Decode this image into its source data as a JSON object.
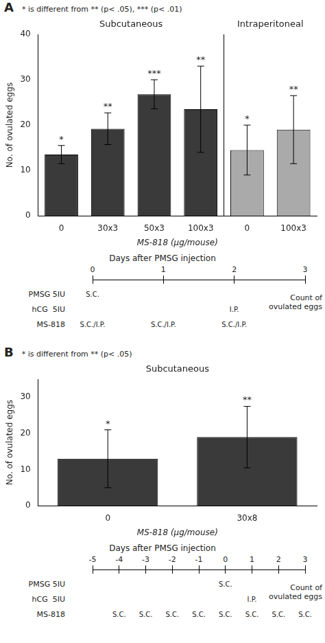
{
  "chart_data": [
    {
      "type": "bar",
      "panel": "A",
      "note": "* is different from ** (p< .05), *** (p< .01)",
      "xlabel": "MS-818 (μg/mouse)",
      "ylabel": "No. of ovulated eggs",
      "ylim": [
        0,
        40
      ],
      "yticks": [
        0,
        10,
        20,
        30,
        40
      ],
      "grid": false,
      "groups": [
        {
          "title": "Subcutaneous",
          "color": "#3a3a3a",
          "categories": [
            "0",
            "30x3",
            "50x3",
            "100x3"
          ],
          "values": [
            13.5,
            19.2,
            26.8,
            23.5
          ],
          "errors": [
            2.0,
            3.5,
            3.2,
            9.5
          ],
          "significance": [
            "*",
            "**",
            "***",
            "**"
          ]
        },
        {
          "title": "Intraperitoneal",
          "color": "#aaaaaa",
          "categories": [
            "0",
            "100x3"
          ],
          "values": [
            14.5,
            19.0
          ],
          "errors": [
            5.5,
            7.5
          ],
          "significance": [
            "*",
            "**"
          ]
        }
      ],
      "timeline": {
        "title": "Days after PMSG injection",
        "days": [
          "0",
          "1",
          "2",
          "3"
        ],
        "rows": [
          {
            "label": "PMSG 5IU",
            "entries": [
              {
                "day": "0",
                "text": "S.C."
              }
            ]
          },
          {
            "label": "hCG  5IU",
            "entries": [
              {
                "day": "2",
                "text": "I.P."
              }
            ]
          },
          {
            "label": "MS-818",
            "entries": [
              {
                "day": "0",
                "text": "S.C./I.P."
              },
              {
                "day": "1",
                "text": "S.C./I.P."
              },
              {
                "day": "2",
                "text": "S.C./I.P."
              }
            ]
          }
        ],
        "note": "Count of\novulated eggs"
      }
    },
    {
      "type": "bar",
      "panel": "B",
      "note": "* is different from ** (p< .05)",
      "xlabel": "MS-818 (μg/mouse)",
      "ylabel": "No. of ovulated eggs",
      "ylim": [
        0,
        35
      ],
      "yticks": [
        0,
        10,
        20,
        30
      ],
      "grid": false,
      "groups": [
        {
          "title": "Subcutaneous",
          "color": "#3a3a3a",
          "categories": [
            "0",
            "30x8"
          ],
          "values": [
            13.0,
            19.0
          ],
          "errors": [
            8.0,
            8.5
          ],
          "significance": [
            "*",
            "**"
          ]
        }
      ],
      "timeline": {
        "title": "Days after PMSG injection",
        "days": [
          "-5",
          "-4",
          "-3",
          "-2",
          "-1",
          "0",
          "1",
          "2",
          "3"
        ],
        "rows": [
          {
            "label": "PMSG 5IU",
            "entries": [
              {
                "day": "0",
                "text": "S.C."
              }
            ]
          },
          {
            "label": "hCG  5IU",
            "entries": [
              {
                "day": "1",
                "text": "I.P."
              }
            ]
          },
          {
            "label": "MS-818",
            "entries": [
              {
                "day": "-4",
                "text": "S.C."
              },
              {
                "day": "-3",
                "text": "S.C."
              },
              {
                "day": "-2",
                "text": "S.C."
              },
              {
                "day": "-1",
                "text": "S.C."
              },
              {
                "day": "0",
                "text": "S.C."
              },
              {
                "day": "1",
                "text": "S.C."
              },
              {
                "day": "2",
                "text": "S.C."
              },
              {
                "day": "3",
                "text": "S.C."
              }
            ]
          }
        ],
        "note": "Count of\novulated eggs"
      }
    }
  ]
}
